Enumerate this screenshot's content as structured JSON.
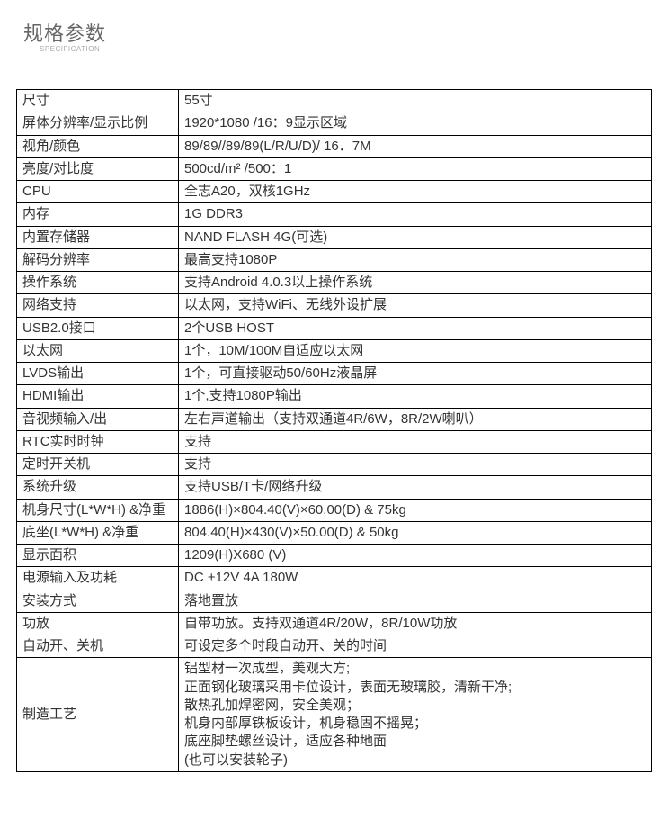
{
  "header": {
    "title": "规格参数",
    "subtitle": "SPECIFICATION"
  },
  "table": {
    "columns": [
      "label",
      "value"
    ],
    "col_widths": [
      "180px",
      "auto"
    ],
    "border_color": "#000000",
    "text_color": "#333333",
    "font_size": 15,
    "rows": [
      {
        "label": "尺寸",
        "value": "55寸"
      },
      {
        "label": "屏体分辨率/显示比例",
        "value": "1920*1080  /16：9显示区域"
      },
      {
        "label": "视角/颜色",
        "value": "89/89//89/89(L/R/U/D)/ 16．7M"
      },
      {
        "label": "亮度/对比度",
        "value": "500cd/m²   /500：1"
      },
      {
        "label": "CPU",
        "value": "全志A20，双核1GHz"
      },
      {
        "label": "内存",
        "value": "1G DDR3"
      },
      {
        "label": "内置存储器",
        "value": " NAND FLASH 4G(可选)"
      },
      {
        "label": "解码分辨率",
        "value": "最高支持1080P"
      },
      {
        "label": "操作系统",
        "value": "支持Android 4.0.3以上操作系统"
      },
      {
        "label": "网络支持",
        "value": "以太网，支持WiFi、无线外设扩展"
      },
      {
        "label": "USB2.0接口",
        "value": "2个USB HOST"
      },
      {
        "label": "以太网",
        "value": "1个，10M/100M自适应以太网"
      },
      {
        "label": "LVDS输出",
        "value": "1个，可直接驱动50/60Hz液晶屏"
      },
      {
        "label": "HDMI输出",
        "value": "1个,支持1080P输出"
      },
      {
        "label": "音视频输入/出",
        "value": "左右声道输出（支持双通道4R/6W，8R/2W喇叭）"
      },
      {
        "label": "RTC实时时钟",
        "value": "支持"
      },
      {
        "label": "定时开关机",
        "value": "支持"
      },
      {
        "label": "系统升级",
        "value": "支持USB/T卡/网络升级"
      },
      {
        "label": "机身尺寸(L*W*H) &净重",
        "value": "1886(H)×804.40(V)×60.00(D)  & 75kg"
      },
      {
        "label": "底坐(L*W*H) &净重",
        "value": "804.40(H)×430(V)×50.00(D) & 50kg"
      },
      {
        "label": "显示面积",
        "value": "1209(H)X680 (V)"
      },
      {
        "label": "电源输入及功耗",
        "value": "DC +12V  4A  180W"
      },
      {
        "label": "安装方式",
        "value": "落地置放"
      },
      {
        "label": "功放",
        "value": "自带功放。支持双通道4R/20W，8R/10W功放"
      },
      {
        "label": "自动开、关机",
        "value": "可设定多个时段自动开、关的时间"
      },
      {
        "label": "制造工艺",
        "value": "铝型材一次成型，美观大方;\n正面钢化玻璃采用卡位设计，表面无玻璃胶，清新干净;\n散热孔加焊密网，安全美观；\n机身内部厚铁板设计，机身稳固不摇晃；\n底座脚垫螺丝设计，适应各种地面\n(也可以安装轮子)"
      }
    ]
  }
}
